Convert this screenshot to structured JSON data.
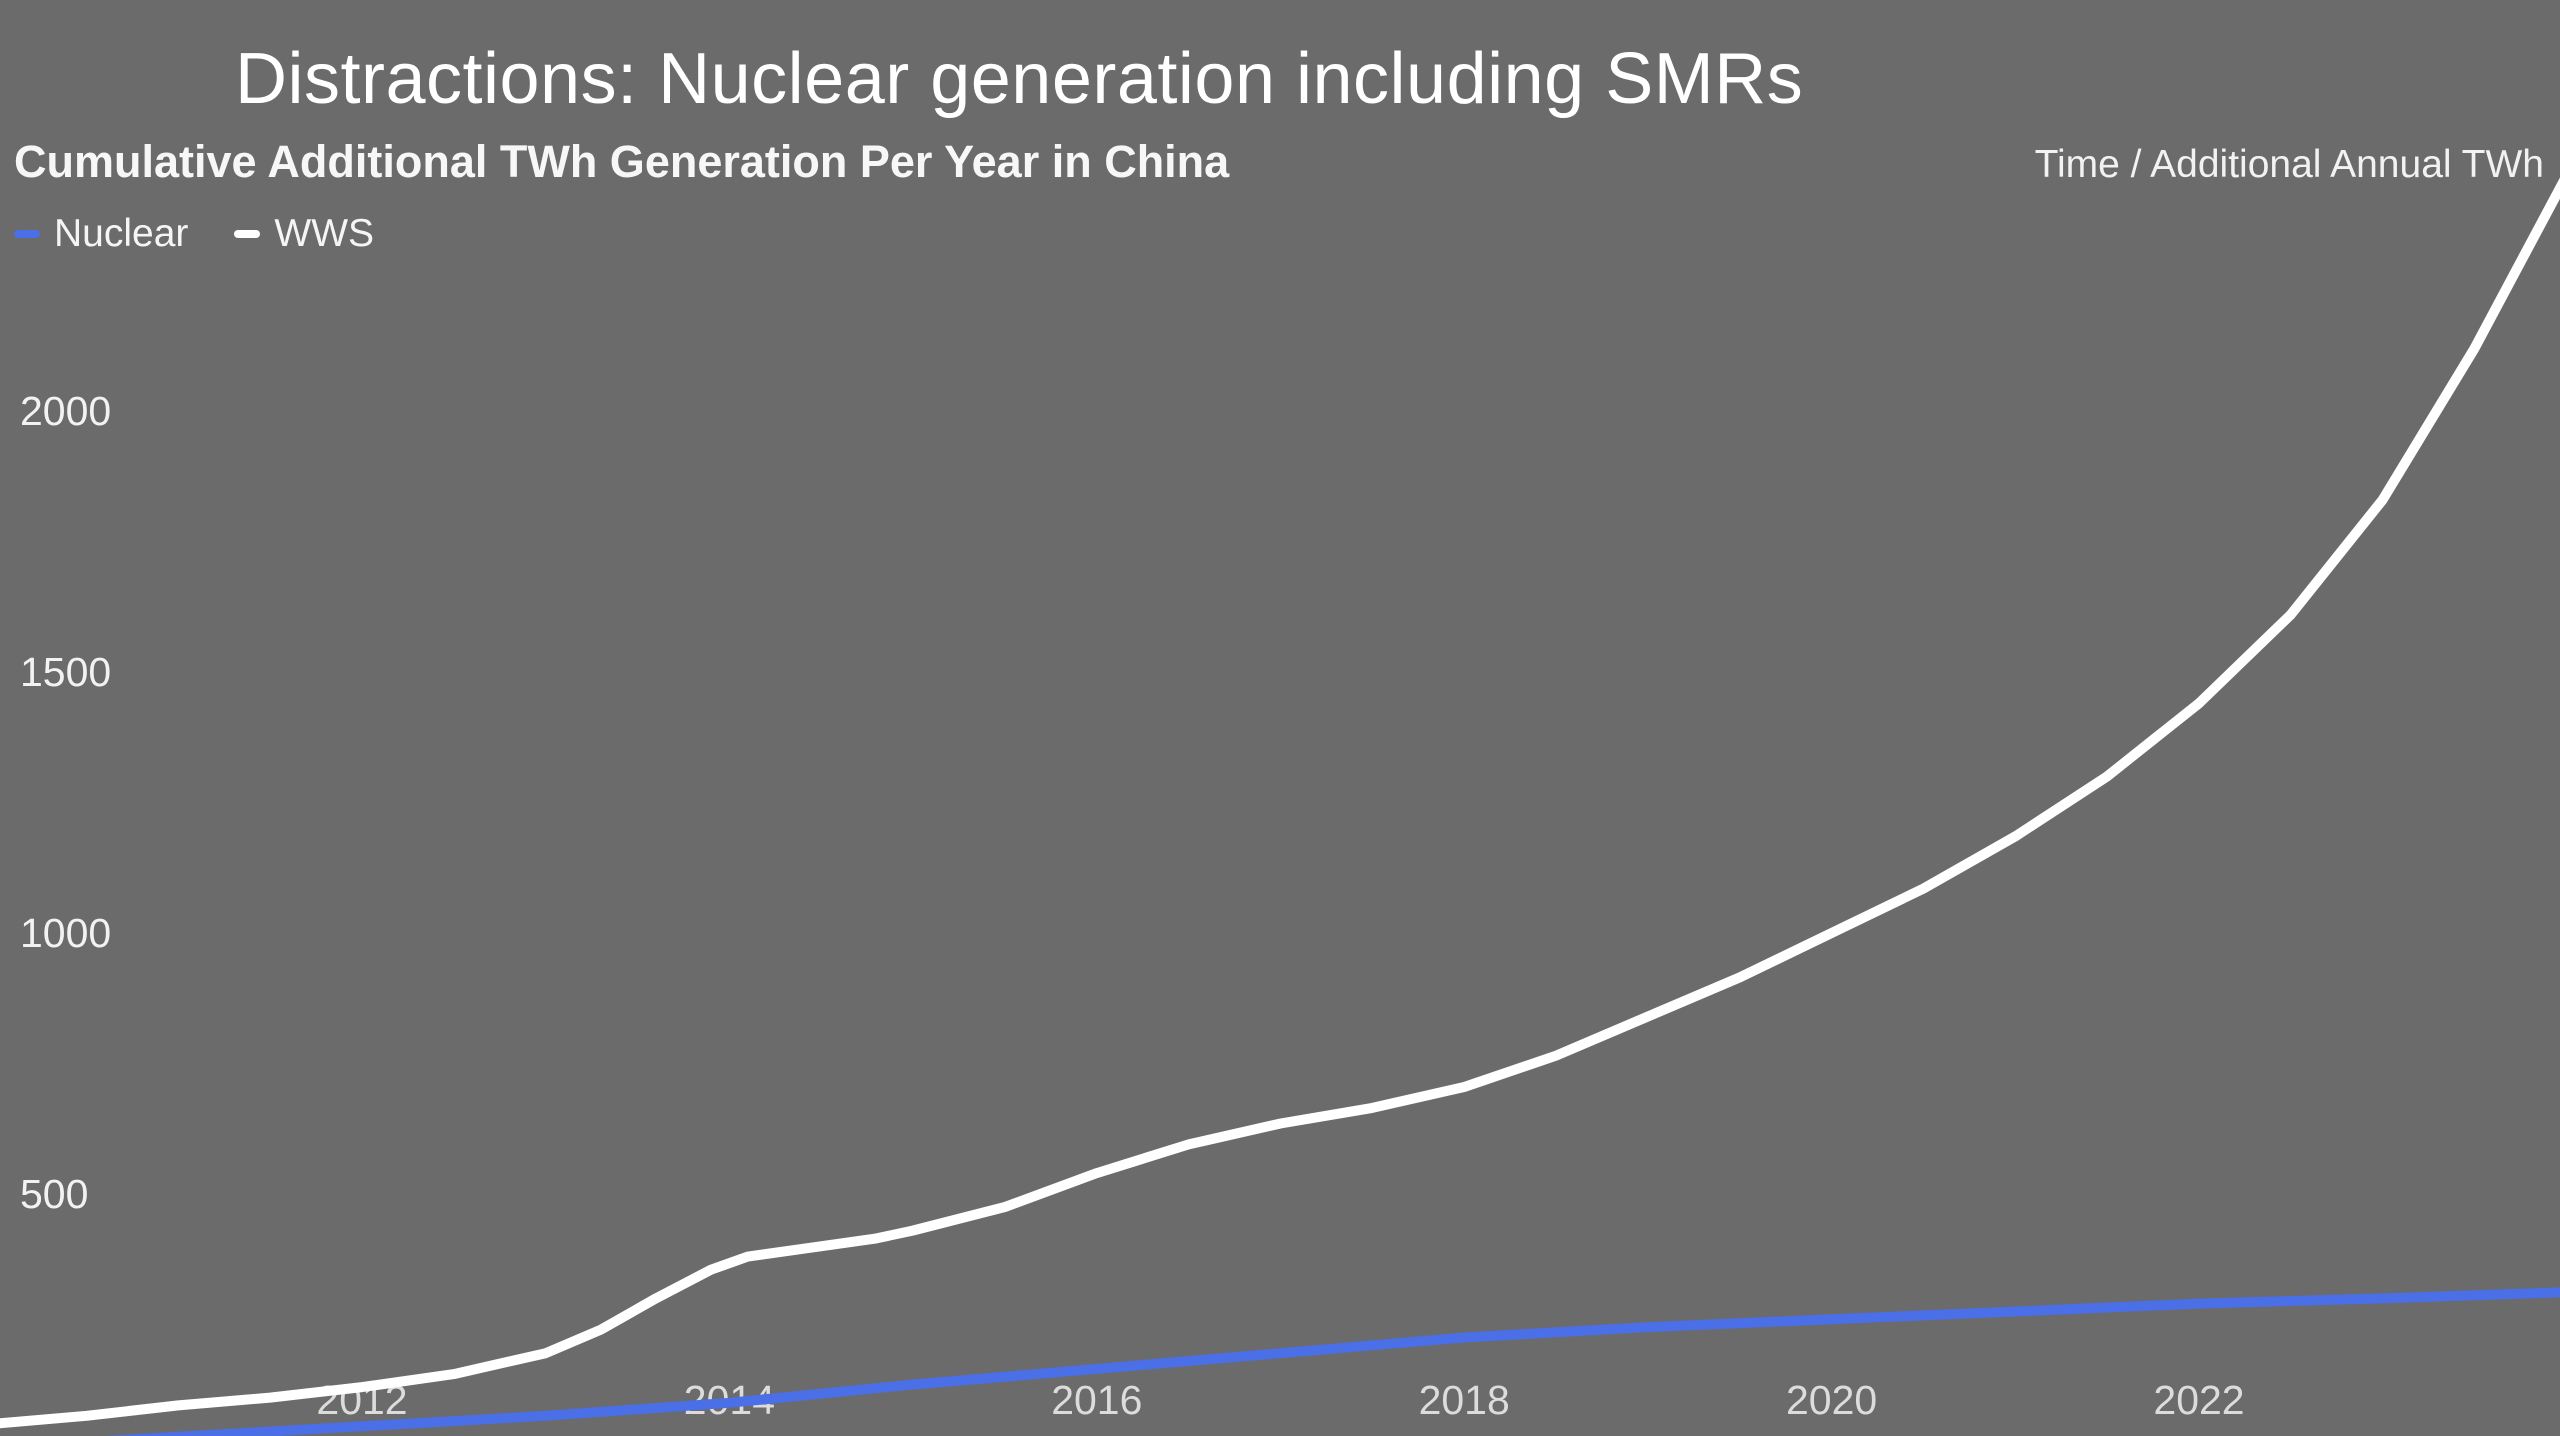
{
  "title": "Distractions: Nuclear generation including SMRs",
  "colors": {
    "background": "#6b6b6b",
    "nuclear_line": "#4a6fe6",
    "wws_line": "#ffffff",
    "x_tick_text": "#dcdcdc",
    "y_tick_text": "#f2f2f2"
  },
  "chart_data": {
    "type": "line",
    "title": "Distractions: Nuclear generation including SMRs",
    "subtitle": "Cumulative Additional TWh Generation Per Year in China",
    "axis_note": "Time / Additional Annual TWh",
    "legend_position": "top-left",
    "grid": false,
    "x_range": [
      2010,
      2024
    ],
    "y_range": [
      0,
      2800
    ],
    "x_ticks": [
      "2012",
      "2014",
      "2016",
      "2018",
      "2020",
      "2022"
    ],
    "x_tick_years": [
      2012,
      2014,
      2016,
      2018,
      2020,
      2022
    ],
    "y_ticks": [
      "500",
      "1000",
      "1500",
      "2000"
    ],
    "y_tick_values": [
      500,
      1000,
      1500,
      2000
    ],
    "series": [
      {
        "name": "Nuclear",
        "color": "#4a6fe6",
        "x": [
          2010,
          2011,
          2012,
          2013,
          2014,
          2015,
          2016,
          2017,
          2018,
          2019,
          2020,
          2021,
          2022,
          2023,
          2024
        ],
        "y": [
          15,
          35,
          55,
          75,
          100,
          135,
          165,
          195,
          225,
          245,
          260,
          275,
          290,
          300,
          312
        ]
      },
      {
        "name": "WWS",
        "color": "#ffffff",
        "x": [
          2010,
          2010.5,
          2011,
          2011.5,
          2012,
          2012.5,
          2013,
          2013.3,
          2013.6,
          2013.9,
          2014.1,
          2014.4,
          2014.8,
          2015,
          2015.5,
          2016,
          2016.5,
          2017,
          2017.5,
          2018,
          2018.5,
          2019,
          2019.5,
          2020,
          2020.5,
          2021,
          2021.5,
          2022,
          2022.5,
          2023,
          2023.5,
          2024
        ],
        "y": [
          60,
          75,
          95,
          110,
          130,
          155,
          195,
          240,
          300,
          355,
          380,
          395,
          415,
          430,
          475,
          540,
          595,
          635,
          665,
          705,
          765,
          840,
          915,
          1000,
          1085,
          1185,
          1300,
          1440,
          1610,
          1830,
          2120,
          2450
        ]
      }
    ]
  }
}
